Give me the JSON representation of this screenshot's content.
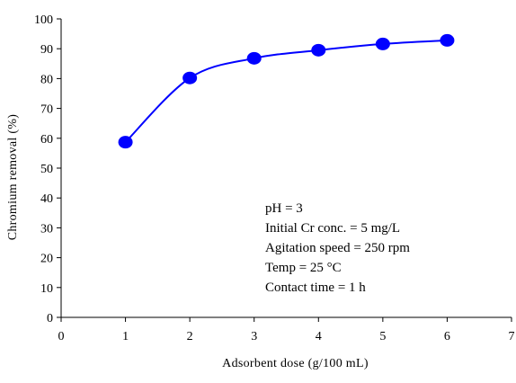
{
  "chart_data": {
    "type": "line",
    "title": "",
    "xlabel": "Adsorbent dose (g/100 mL)",
    "ylabel": "Chromium removal (%)",
    "xlim": [
      0,
      7
    ],
    "ylim": [
      0,
      100
    ],
    "x_ticks": [
      "0",
      "1",
      "2",
      "3",
      "4",
      "5",
      "6",
      "7"
    ],
    "y_ticks": [
      "0",
      "10",
      "20",
      "30",
      "40",
      "50",
      "60",
      "70",
      "80",
      "90",
      "100"
    ],
    "grid": false,
    "legend": "none",
    "series": [
      {
        "color": "#0000FF",
        "marker": "circle",
        "smooth": true,
        "x": [
          1,
          2,
          3,
          4,
          5,
          6
        ],
        "y": [
          58.7,
          80.2,
          86.8,
          89.5,
          91.6,
          92.8
        ]
      }
    ],
    "annotations": [
      "pH = 3",
      "Initial Cr conc. = 5 mg/L",
      "Agitation speed = 250 rpm",
      "Temp = 25 °C",
      "Contact time = 1 h"
    ]
  }
}
